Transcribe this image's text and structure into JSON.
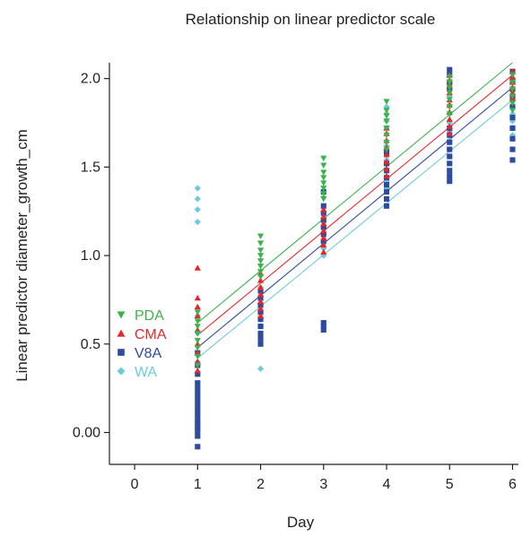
{
  "chart_data": {
    "type": "scatter",
    "title": "Relationship on linear predictor scale",
    "xlabel": "Day",
    "ylabel": "Linear predictor diameter_growth_cm",
    "xlim": [
      -0.4,
      6.15
    ],
    "ylim": [
      -0.18,
      2.14
    ],
    "x_ticks": [
      0,
      1,
      2,
      3,
      4,
      5,
      6
    ],
    "x_tick_labels": [
      "0",
      "1",
      "2",
      "3",
      "4",
      "5",
      "6"
    ],
    "y_ticks": [
      0.0,
      0.5,
      1.0,
      1.5,
      2.0
    ],
    "y_tick_labels": [
      "0.00",
      "0.5",
      "1.0",
      "1.5",
      "2.0"
    ],
    "grid": false,
    "legend_placement": "left-center",
    "series": [
      {
        "name": "PDA",
        "color": "#3cb34a",
        "marker": "triangle-down",
        "trend": {
          "x": [
            1,
            6
          ],
          "y": [
            0.62,
            2.09
          ]
        },
        "points": [
          {
            "x": 1,
            "y": [
              0.68,
              0.63,
              0.6,
              0.56,
              0.52,
              0.48,
              0.43,
              0.38
            ]
          },
          {
            "x": 2,
            "y": [
              1.11,
              1.07,
              1.03,
              1.0,
              0.97,
              0.94,
              0.91,
              0.88
            ]
          },
          {
            "x": 3,
            "y": [
              1.55,
              1.51,
              1.47,
              1.44,
              1.41,
              1.38,
              1.35,
              1.32
            ]
          },
          {
            "x": 4,
            "y": [
              1.87,
              1.82,
              1.79,
              1.76,
              1.72,
              1.68,
              1.64,
              1.6
            ]
          },
          {
            "x": 5,
            "y": [
              2.01,
              1.98,
              1.95,
              1.92,
              1.88,
              1.84,
              1.8
            ]
          },
          {
            "x": 6,
            "y": [
              2.02,
              1.98,
              1.94,
              1.9,
              1.86,
              1.82
            ]
          }
        ]
      },
      {
        "name": "CMA",
        "color": "#e8262a",
        "marker": "triangle-up",
        "trend": {
          "x": [
            1,
            6
          ],
          "y": [
            0.55,
            2.02
          ]
        },
        "points": [
          {
            "x": 1,
            "y": [
              0.93,
              0.76,
              0.71,
              0.66,
              0.58,
              0.5,
              0.45,
              0.4,
              0.35
            ]
          },
          {
            "x": 2,
            "y": [
              0.9,
              0.86,
              0.82,
              0.78,
              0.74,
              0.7,
              0.66
            ]
          },
          {
            "x": 3,
            "y": [
              1.26,
              1.22,
              1.18,
              1.14,
              1.1,
              1.06,
              1.02
            ]
          },
          {
            "x": 4,
            "y": [
              1.72,
              1.69,
              1.65,
              1.61,
              1.57,
              1.53,
              1.49,
              1.45
            ]
          },
          {
            "x": 5,
            "y": [
              2.02,
              1.99,
              1.96,
              1.92,
              1.88,
              1.85,
              1.81,
              1.77,
              1.73,
              1.69
            ]
          },
          {
            "x": 6,
            "y": [
              2.04,
              2.01,
              1.98,
              1.95,
              1.92,
              1.89
            ]
          }
        ]
      },
      {
        "name": "V8A",
        "color": "#2d4ba0",
        "marker": "square",
        "trend": {
          "x": [
            1,
            6
          ],
          "y": [
            0.48,
            1.95
          ]
        },
        "points": [
          {
            "x": 1,
            "y": [
              0.45,
              0.38,
              0.33,
              0.28,
              0.25,
              0.22,
              0.19,
              0.16,
              0.13,
              0.1,
              0.07,
              0.05,
              0.03,
              0.01,
              -0.02,
              -0.08
            ]
          },
          {
            "x": 2,
            "y": [
              0.8,
              0.76,
              0.72,
              0.68,
              0.64,
              0.6,
              0.56,
              0.53,
              0.5
            ]
          },
          {
            "x": 3,
            "y": [
              1.36,
              1.28,
              1.24,
              1.2,
              1.16,
              1.12,
              1.08,
              0.62,
              0.6,
              0.58
            ]
          },
          {
            "x": 4,
            "y": [
              1.58,
              1.52,
              1.48,
              1.44,
              1.4,
              1.36,
              1.32,
              1.28
            ]
          },
          {
            "x": 5,
            "y": [
              2.05,
              2.02,
              1.98,
              1.94,
              1.72,
              1.68,
              1.64,
              1.6,
              1.56,
              1.52,
              1.48,
              1.45,
              1.42
            ]
          },
          {
            "x": 6,
            "y": [
              2.04,
              1.98,
              1.94,
              1.9,
              1.84,
              1.78,
              1.72,
              1.66,
              1.6,
              1.54
            ]
          }
        ]
      },
      {
        "name": "WA",
        "color": "#6ccbdb",
        "marker": "diamond",
        "trend": {
          "x": [
            1,
            6
          ],
          "y": [
            0.42,
            1.88
          ]
        },
        "points": [
          {
            "x": 1,
            "y": [
              1.38,
              1.32,
              1.26,
              1.19,
              0.66,
              0.56,
              0.44,
              0.4
            ]
          },
          {
            "x": 2,
            "y": [
              0.82,
              0.77,
              0.73,
              0.68,
              0.64,
              0.6,
              0.36
            ]
          },
          {
            "x": 3,
            "y": [
              1.33,
              1.25,
              1.2,
              1.16,
              1.12,
              1.08,
              1.04,
              1.0
            ]
          },
          {
            "x": 4,
            "y": [
              1.84,
              1.8,
              1.76,
              1.72,
              1.62,
              1.58,
              1.54,
              1.42,
              1.38
            ]
          },
          {
            "x": 5,
            "y": [
              1.98,
              1.9,
              1.85,
              1.8,
              1.75,
              1.7,
              1.65,
              1.6,
              1.56
            ]
          },
          {
            "x": 6,
            "y": [
              1.88,
              1.84,
              1.8,
              1.76,
              1.72,
              1.68
            ]
          }
        ]
      }
    ]
  }
}
